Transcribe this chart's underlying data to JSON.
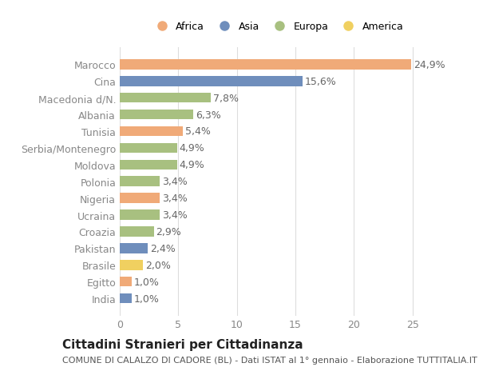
{
  "categories": [
    "Marocco",
    "Cina",
    "Macedonia d/N.",
    "Albania",
    "Tunisia",
    "Serbia/Montenegro",
    "Moldova",
    "Polonia",
    "Nigeria",
    "Ucraina",
    "Croazia",
    "Pakistan",
    "Brasile",
    "Egitto",
    "India"
  ],
  "values": [
    24.9,
    15.6,
    7.8,
    6.3,
    5.4,
    4.9,
    4.9,
    3.4,
    3.4,
    3.4,
    2.9,
    2.4,
    2.0,
    1.0,
    1.0
  ],
  "continents": [
    "Africa",
    "Asia",
    "Europa",
    "Europa",
    "Africa",
    "Europa",
    "Europa",
    "Europa",
    "Africa",
    "Europa",
    "Europa",
    "Asia",
    "America",
    "Africa",
    "Asia"
  ],
  "colors": {
    "Africa": "#F0AA78",
    "Asia": "#6F8EBC",
    "Europa": "#A8C080",
    "America": "#F0D060"
  },
  "legend_order": [
    "Africa",
    "Asia",
    "Europa",
    "America"
  ],
  "title": "Cittadini Stranieri per Cittadinanza",
  "subtitle": "COMUNE DI CALALZO DI CADORE (BL) - Dati ISTAT al 1° gennaio - Elaborazione TUTTITALIA.IT",
  "xlim": [
    0,
    27
  ],
  "xticks": [
    0,
    5,
    10,
    15,
    20,
    25
  ],
  "background_color": "#ffffff",
  "grid_color": "#dddddd",
  "bar_height": 0.6,
  "label_fontsize": 9,
  "tick_fontsize": 9,
  "title_fontsize": 11,
  "subtitle_fontsize": 8
}
